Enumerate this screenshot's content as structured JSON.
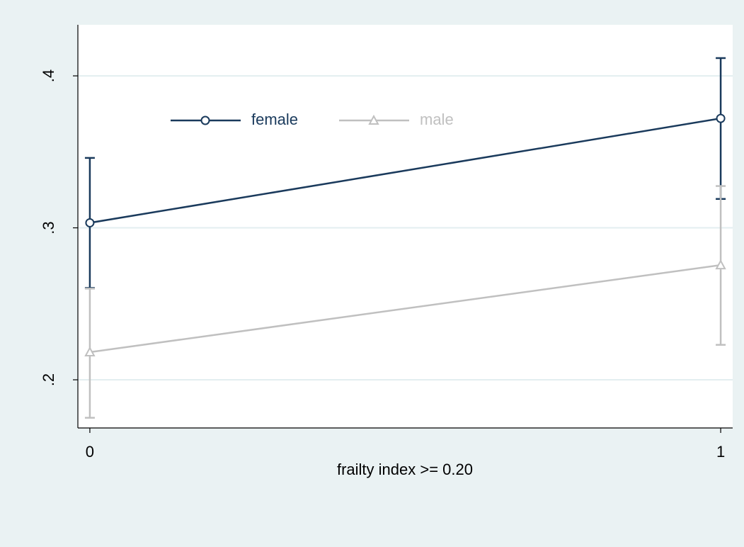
{
  "chart_data": {
    "type": "line",
    "xlabel": "frailty index >= 0.20",
    "x": [
      0,
      1
    ],
    "xlim": [
      -0.019,
      1.019
    ],
    "xticks": [
      0,
      1
    ],
    "ylim": [
      0.1683,
      0.4336
    ],
    "yticks": [
      {
        "value": 0.2,
        "label": ".2"
      },
      {
        "value": 0.3,
        "label": ".3"
      },
      {
        "value": 0.4,
        "label": ".4"
      }
    ],
    "grid": true,
    "series": [
      {
        "name": "female",
        "color": "#1a3a5c",
        "marker": "circle",
        "values": [
          0.3033,
          0.372
        ],
        "ci_low": [
          0.2604,
          0.319
        ],
        "ci_high": [
          0.346,
          0.4117
        ]
      },
      {
        "name": "male",
        "color": "#c0c0c0",
        "marker": "triangle",
        "values": [
          0.2182,
          0.2755
        ],
        "ci_low": [
          0.175,
          0.223
        ],
        "ci_high": [
          0.26,
          0.3275
        ]
      }
    ]
  }
}
